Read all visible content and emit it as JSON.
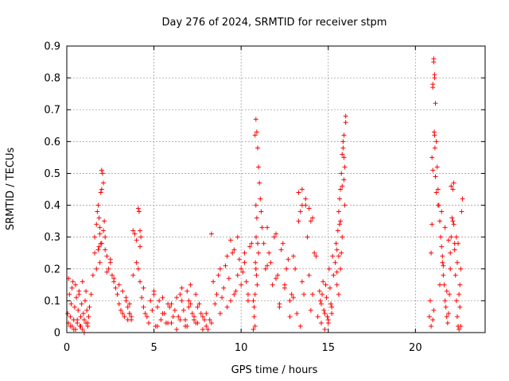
{
  "chart_data": {
    "type": "scatter",
    "title": "Day 276 of 2024, SRMTID for receiver stpm",
    "xlabel": "GPS time / hours",
    "ylabel": "SRMTID / TECUs",
    "xlim": [
      0,
      24
    ],
    "ylim": [
      0,
      0.9
    ],
    "xticks": [
      0,
      5,
      10,
      15,
      20
    ],
    "xtick_labels": [
      "0",
      "5",
      "10",
      "15",
      "20"
    ],
    "yticks": [
      0,
      0.1,
      0.2,
      0.3,
      0.4,
      0.5,
      0.6,
      0.7,
      0.8,
      0.9
    ],
    "ytick_labels": [
      "0",
      "0.1",
      "0.2",
      "0.3",
      "0.4",
      "0.5",
      "0.6",
      "0.7",
      "0.8",
      "0.9"
    ],
    "grid": true,
    "marker": "plus",
    "color": "#ff0000",
    "series": [
      {
        "x": [
          0.05,
          0.1,
          0.15,
          0.2,
          0.25,
          0.3,
          0.35,
          0.4,
          0.45,
          0.5,
          0.55,
          0.6,
          0.65,
          0.7,
          0.75,
          0.8,
          0.85,
          0.9,
          0.95,
          1.0,
          1.05,
          1.1,
          1.15,
          1.2,
          1.25,
          1.3,
          0.1,
          0.3,
          0.5,
          0.7,
          0.9,
          1.1,
          0.2,
          0.4,
          0.6,
          0.8,
          1.0,
          1.2,
          1.4,
          1.5,
          1.6,
          1.7,
          1.75,
          1.8,
          1.85,
          1.9,
          1.95,
          2.0,
          2.05,
          2.1,
          2.15,
          2.2,
          2.3,
          2.4,
          2.5,
          2.6,
          2.7,
          2.8,
          1.6,
          1.7,
          1.8,
          1.9,
          2.0,
          2.1,
          2.2,
          2.3,
          2.5,
          2.7,
          1.95,
          2.0,
          1.9,
          1.85,
          2.9,
          3.0,
          3.1,
          3.2,
          3.3,
          3.4,
          3.5,
          3.6,
          3.7,
          3.8,
          3.9,
          4.0,
          4.1,
          4.2,
          4.3,
          4.4,
          4.5,
          3.0,
          3.2,
          3.4,
          3.6,
          3.8,
          4.0,
          4.2,
          4.4,
          3.5,
          3.6,
          3.7,
          4.1,
          4.15,
          4.2,
          4.25,
          4.6,
          4.8,
          5.0,
          5.2,
          5.4,
          5.6,
          5.8,
          6.0,
          6.2,
          6.4,
          6.6,
          6.8,
          7.0,
          7.2,
          7.4,
          7.6,
          7.8,
          8.0,
          8.2,
          4.7,
          4.9,
          5.1,
          5.3,
          5.5,
          5.7,
          5.9,
          6.1,
          6.3,
          6.5,
          6.7,
          6.9,
          7.1,
          7.3,
          7.5,
          7.7,
          7.9,
          8.1,
          5.0,
          5.5,
          6.0,
          6.5,
          7.0,
          7.5,
          8.0,
          5.2,
          5.8,
          6.3,
          6.8,
          7.3,
          7.8,
          8.3,
          6.6,
          6.9,
          7.1,
          7.4,
          8.4,
          8.6,
          8.8,
          9.0,
          9.2,
          9.4,
          9.6,
          9.8,
          10.0,
          10.2,
          10.4,
          10.6,
          8.5,
          8.7,
          8.9,
          9.1,
          9.3,
          9.5,
          9.7,
          9.9,
          10.1,
          10.3,
          10.5,
          8.8,
          9.2,
          9.6,
          10.0,
          10.4,
          9.4,
          9.8,
          10.2,
          8.3,
          10.7,
          10.75,
          10.8,
          10.85,
          10.9,
          10.95,
          11.0,
          11.05,
          11.1,
          11.15,
          11.2,
          10.8,
          10.85,
          10.9,
          10.82,
          10.88,
          10.92,
          10.86,
          10.95,
          11.0,
          10.7,
          10.75,
          10.8,
          10.85,
          11.3,
          11.5,
          11.7,
          11.9,
          12.1,
          12.3,
          12.5,
          12.7,
          12.9,
          13.1,
          13.3,
          13.5,
          13.7,
          13.9,
          14.1,
          14.3,
          11.4,
          11.6,
          11.8,
          12.0,
          12.2,
          12.4,
          12.6,
          12.8,
          13.0,
          13.2,
          13.4,
          13.6,
          13.8,
          14.0,
          14.2,
          14.4,
          11.5,
          12.0,
          12.5,
          13.0,
          13.5,
          14.0,
          13.3,
          13.5,
          13.7,
          13.9,
          14.1,
          12.2,
          12.8,
          13.4,
          14.5,
          14.6,
          14.7,
          14.8,
          14.9,
          15.0,
          15.1,
          15.2,
          15.3,
          14.55,
          14.65,
          14.75,
          14.85,
          14.95,
          15.05,
          15.15,
          15.25,
          14.6,
          14.8,
          15.0,
          15.2,
          15.4,
          15.5,
          15.6,
          15.7,
          15.8,
          15.9,
          16.0,
          15.45,
          15.55,
          15.65,
          15.75,
          15.85,
          15.95,
          15.5,
          15.6,
          15.7,
          15.8,
          15.9,
          16.0,
          15.85,
          15.9,
          15.95,
          15.8,
          15.75,
          15.7,
          15.6,
          15.65,
          15.5,
          20.8,
          20.85,
          20.9,
          20.95,
          21.0,
          21.05,
          21.1,
          21.15,
          21.2,
          21.25,
          21.3,
          21.35,
          21.4,
          21.45,
          21.5,
          21.55,
          21.6,
          21.65,
          21.7,
          21.75,
          21.8,
          21.85,
          21.9,
          21.95,
          22.0,
          22.05,
          22.1,
          22.15,
          22.2,
          22.25,
          22.3,
          22.35,
          22.4,
          22.45,
          22.5,
          22.55,
          22.6,
          22.65,
          22.7,
          20.9,
          21.0,
          21.05,
          21.1,
          21.0,
          21.05,
          21.1,
          21.08,
          21.12,
          20.95,
          21.0,
          21.15,
          21.2,
          21.3,
          21.5,
          21.7,
          21.9,
          22.0,
          22.2,
          22.4,
          22.5,
          22.6,
          22.55,
          22.45,
          22.35,
          22.25,
          22.15,
          21.6,
          21.8,
          22.05,
          21.4,
          21.55
        ],
        "y": [
          0.06,
          0.03,
          0.12,
          0.05,
          0.09,
          0.02,
          0.16,
          0.04,
          0.08,
          0.01,
          0.11,
          0.03,
          0.07,
          0.13,
          0.02,
          0.05,
          0.09,
          0.01,
          0.06,
          0.04,
          0.1,
          0.03,
          0.07,
          0.02,
          0.05,
          0.08,
          0.17,
          0.14,
          0.15,
          0.12,
          0.16,
          0.13,
          0.02,
          0.01,
          0.04,
          0.02,
          0.0,
          0.03,
          0.12,
          0.18,
          0.3,
          0.34,
          0.38,
          0.4,
          0.36,
          0.33,
          0.28,
          0.45,
          0.5,
          0.47,
          0.35,
          0.3,
          0.24,
          0.2,
          0.22,
          0.18,
          0.16,
          0.14,
          0.25,
          0.2,
          0.26,
          0.22,
          0.28,
          0.32,
          0.26,
          0.19,
          0.23,
          0.17,
          0.44,
          0.51,
          0.31,
          0.27,
          0.12,
          0.09,
          0.07,
          0.06,
          0.05,
          0.1,
          0.08,
          0.06,
          0.04,
          0.32,
          0.31,
          0.29,
          0.2,
          0.16,
          0.11,
          0.08,
          0.06,
          0.15,
          0.13,
          0.11,
          0.09,
          0.18,
          0.22,
          0.27,
          0.14,
          0.04,
          0.06,
          0.05,
          0.39,
          0.38,
          0.32,
          0.3,
          0.05,
          0.1,
          0.12,
          0.08,
          0.04,
          0.06,
          0.09,
          0.03,
          0.07,
          0.05,
          0.1,
          0.04,
          0.08,
          0.06,
          0.03,
          0.09,
          0.05,
          0.02,
          0.04,
          0.03,
          0.07,
          0.02,
          0.1,
          0.06,
          0.03,
          0.08,
          0.05,
          0.11,
          0.04,
          0.07,
          0.02,
          0.09,
          0.05,
          0.03,
          0.06,
          0.04,
          0.01,
          0.13,
          0.11,
          0.09,
          0.12,
          0.1,
          0.08,
          0.06,
          0.02,
          0.03,
          0.01,
          0.02,
          0.04,
          0.01,
          0.03,
          0.14,
          0.13,
          0.15,
          0.12,
          0.16,
          0.12,
          0.2,
          0.14,
          0.24,
          0.1,
          0.26,
          0.18,
          0.15,
          0.22,
          0.12,
          0.28,
          0.09,
          0.18,
          0.11,
          0.21,
          0.17,
          0.25,
          0.13,
          0.23,
          0.19,
          0.16,
          0.27,
          0.06,
          0.08,
          0.12,
          0.2,
          0.1,
          0.29,
          0.3,
          0.25,
          0.31,
          0.1,
          0.05,
          0.02,
          0.67,
          0.63,
          0.58,
          0.52,
          0.47,
          0.42,
          0.38,
          0.33,
          0.62,
          0.4,
          0.36,
          0.22,
          0.18,
          0.15,
          0.3,
          0.28,
          0.25,
          0.01,
          0.08,
          0.12,
          0.2,
          0.28,
          0.33,
          0.22,
          0.3,
          0.18,
          0.26,
          0.14,
          0.23,
          0.12,
          0.2,
          0.35,
          0.16,
          0.4,
          0.18,
          0.12,
          0.24,
          0.2,
          0.25,
          0.15,
          0.31,
          0.09,
          0.28,
          0.2,
          0.1,
          0.24,
          0.06,
          0.38,
          0.12,
          0.3,
          0.07,
          0.25,
          0.05,
          0.21,
          0.17,
          0.15,
          0.11,
          0.45,
          0.35,
          0.44,
          0.4,
          0.42,
          0.39,
          0.36,
          0.08,
          0.05,
          0.02,
          0.13,
          0.09,
          0.16,
          0.06,
          0.11,
          0.04,
          0.14,
          0.08,
          0.18,
          0.1,
          0.12,
          0.07,
          0.15,
          0.05,
          0.2,
          0.09,
          0.24,
          0.03,
          0.01,
          0.03,
          0.06,
          0.22,
          0.19,
          0.38,
          0.45,
          0.56,
          0.62,
          0.68,
          0.28,
          0.32,
          0.42,
          0.5,
          0.58,
          0.52,
          0.15,
          0.24,
          0.35,
          0.46,
          0.55,
          0.66,
          0.6,
          0.48,
          0.4,
          0.3,
          0.25,
          0.2,
          0.12,
          0.34,
          0.26,
          0.05,
          0.1,
          0.25,
          0.34,
          0.78,
          0.86,
          0.8,
          0.72,
          0.6,
          0.52,
          0.45,
          0.4,
          0.35,
          0.3,
          0.27,
          0.22,
          0.18,
          0.15,
          0.1,
          0.08,
          0.05,
          0.03,
          0.06,
          0.12,
          0.2,
          0.3,
          0.36,
          0.45,
          0.47,
          0.28,
          0.18,
          0.1,
          0.05,
          0.02,
          0.01,
          0.08,
          0.2,
          0.38,
          0.42,
          0.02,
          0.04,
          0.07,
          0.62,
          0.77,
          0.85,
          0.81,
          0.63,
          0.58,
          0.55,
          0.51,
          0.49,
          0.44,
          0.4,
          0.38,
          0.33,
          0.29,
          0.25,
          0.34,
          0.22,
          0.12,
          0.02,
          0.15,
          0.28,
          0.3,
          0.26,
          0.35,
          0.21,
          0.13,
          0.46,
          0.15,
          0.24
        ]
      }
    ]
  }
}
